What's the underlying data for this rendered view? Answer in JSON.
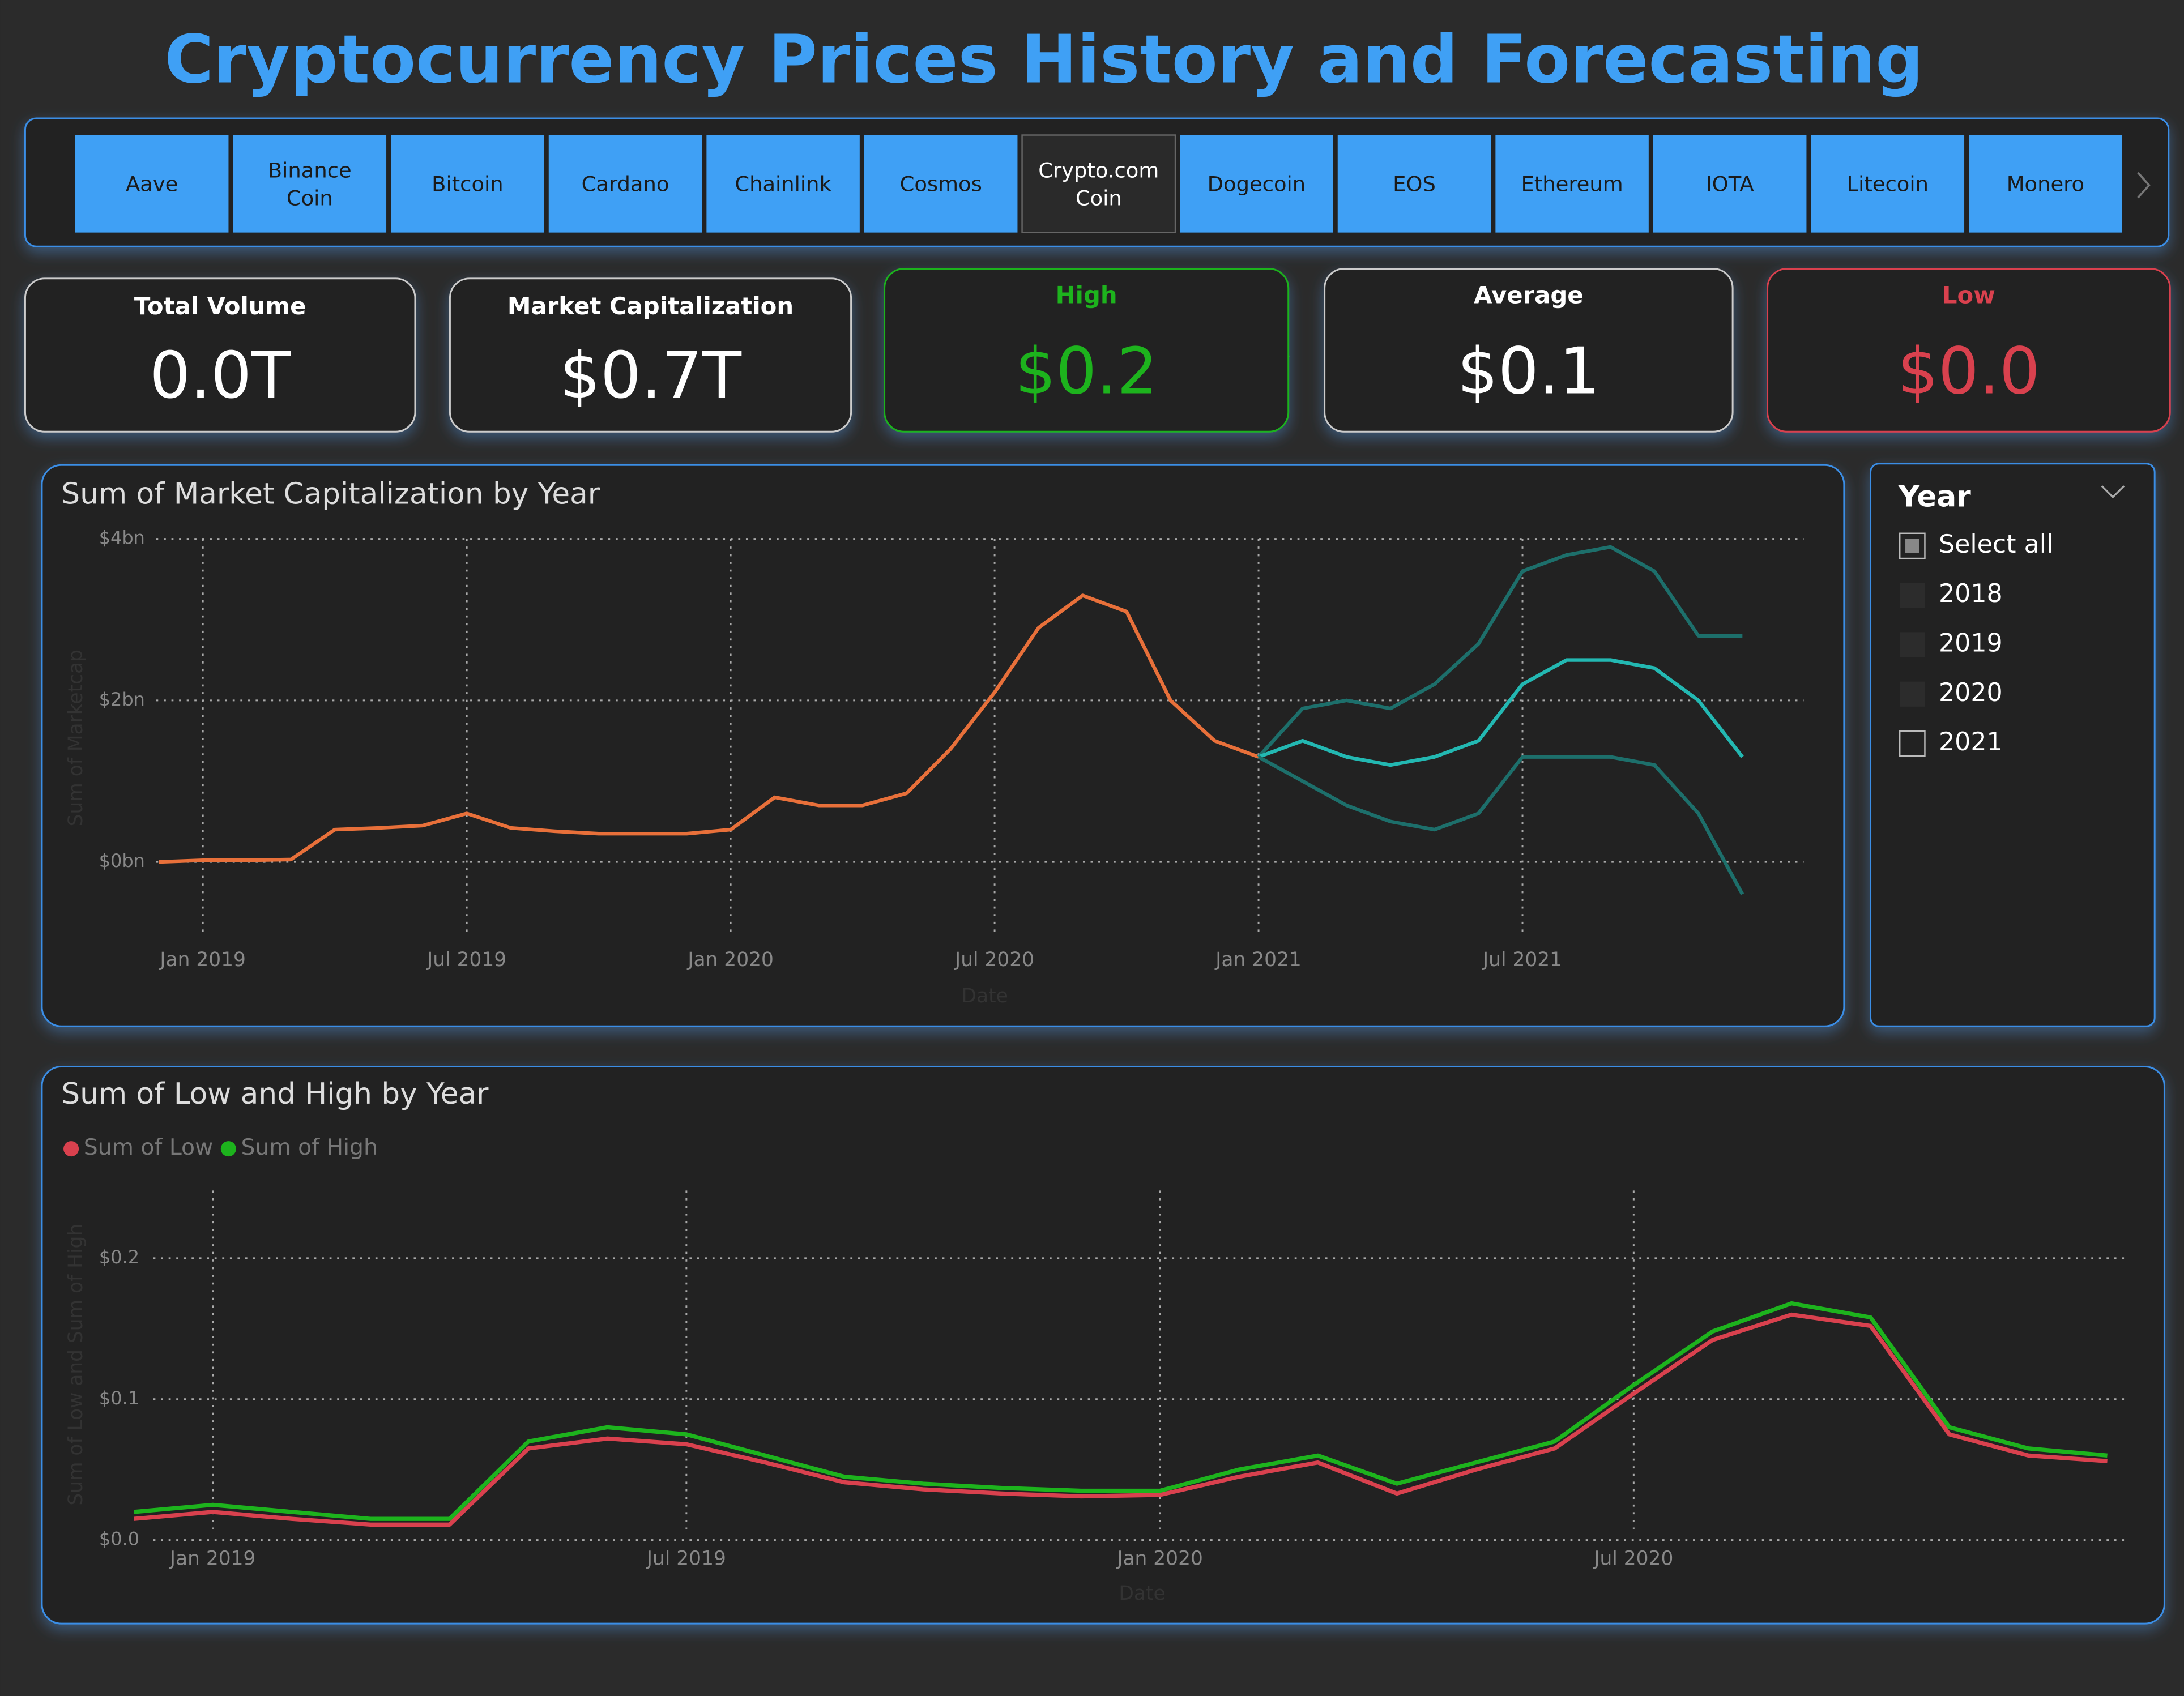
{
  "title": "Cryptocurrency Prices History and Forecasting",
  "tabs": {
    "items": [
      "Aave",
      "Binance Coin",
      "Bitcoin",
      "Cardano",
      "Chainlink",
      "Cosmos",
      "Crypto.com Coin",
      "Dogecoin",
      "EOS",
      "Ethereum",
      "IOTA",
      "Litecoin",
      "Monero"
    ],
    "selected": 6
  },
  "cards": [
    {
      "label": "Total Volume",
      "value": "0.0T",
      "color": "#ffffff"
    },
    {
      "label": "Market Capitalization",
      "value": "$0.7T",
      "color": "#ffffff"
    },
    {
      "label": "High",
      "value": "$0.2",
      "color": "#1db31d"
    },
    {
      "label": "Average",
      "value": "$0.1",
      "color": "#ffffff"
    },
    {
      "label": "Low",
      "value": "$0.0",
      "color": "#d9414e"
    }
  ],
  "slicer": {
    "title": "Year",
    "items": [
      "Select all",
      "2018",
      "2019",
      "2020",
      "2021"
    ]
  },
  "chart_data": [
    {
      "type": "line",
      "title": "Sum of Market Capitalization by Year",
      "x_label": "Date",
      "y_label": "Sum of Marketcap",
      "x": [
        "2018-12",
        "2019-01",
        "2019-02",
        "2019-03",
        "2019-04",
        "2019-05",
        "2019-06",
        "2019-07",
        "2019-08",
        "2019-09",
        "2019-10",
        "2019-11",
        "2019-12",
        "2020-01",
        "2020-02",
        "2020-03",
        "2020-04",
        "2020-05",
        "2020-06",
        "2020-07",
        "2020-08",
        "2020-09",
        "2020-10",
        "2020-11",
        "2020-12",
        "2021-01",
        "2021-02",
        "2021-03",
        "2021-04",
        "2021-05",
        "2021-06",
        "2021-07",
        "2021-08",
        "2021-09",
        "2021-10",
        "2021-11",
        "2021-12"
      ],
      "series": [
        {
          "color": "#e8703a",
          "values": [
            0.0,
            0.02,
            0.02,
            0.03,
            0.4,
            0.42,
            0.45,
            0.6,
            0.42,
            0.38,
            0.35,
            0.35,
            0.35,
            0.4,
            0.8,
            0.7,
            0.7,
            0.85,
            1.4,
            2.1,
            2.9,
            3.3,
            3.1,
            2.0,
            1.5,
            1.3,
            null,
            null,
            null,
            null,
            null,
            null,
            null,
            null,
            null,
            null,
            null
          ]
        },
        {
          "color": "#1d6f6b",
          "values": [
            null,
            null,
            null,
            null,
            null,
            null,
            null,
            null,
            null,
            null,
            null,
            null,
            null,
            null,
            null,
            null,
            null,
            null,
            null,
            null,
            null,
            null,
            null,
            null,
            null,
            1.3,
            1.9,
            2.0,
            1.9,
            2.2,
            2.7,
            3.6,
            3.8,
            3.9,
            3.6,
            2.8,
            2.8
          ]
        },
        {
          "color": "#23b8b2",
          "values": [
            null,
            null,
            null,
            null,
            null,
            null,
            null,
            null,
            null,
            null,
            null,
            null,
            null,
            null,
            null,
            null,
            null,
            null,
            null,
            null,
            null,
            null,
            null,
            null,
            null,
            1.3,
            1.5,
            1.3,
            1.2,
            1.3,
            1.5,
            2.2,
            2.5,
            2.5,
            2.4,
            2.0,
            1.3
          ]
        },
        {
          "color": "#1d6f6b",
          "values": [
            null,
            null,
            null,
            null,
            null,
            null,
            null,
            null,
            null,
            null,
            null,
            null,
            null,
            null,
            null,
            null,
            null,
            null,
            null,
            null,
            null,
            null,
            null,
            null,
            null,
            1.3,
            1.0,
            0.7,
            0.5,
            0.4,
            0.6,
            1.3,
            1.3,
            1.3,
            1.2,
            0.6,
            -0.4
          ]
        }
      ],
      "xlim": [
        "2018-12",
        "2021-12"
      ],
      "xticks": [
        {
          "value": "2019-01",
          "label": "Jan 2019"
        },
        {
          "value": "2019-07",
          "label": "Jul 2019"
        },
        {
          "value": "2020-01",
          "label": "Jan 2020"
        },
        {
          "value": "2020-07",
          "label": "Jul 2020"
        },
        {
          "value": "2021-01",
          "label": "Jan 2021"
        },
        {
          "value": "2021-07",
          "label": "Jul 2021"
        }
      ],
      "ylim": [
        -1.0,
        4.0
      ],
      "yticks": [
        {
          "value": 0,
          "label": "$0bn"
        },
        {
          "value": 2,
          "label": "$2bn"
        },
        {
          "value": 4,
          "label": "$4bn"
        }
      ],
      "grid": true
    },
    {
      "type": "line",
      "title": "Sum of Low and High by Year",
      "x_label": "Date",
      "y_label": "Sum of Low and Sum of High",
      "x": [
        "2018-12",
        "2019-01",
        "2019-02",
        "2019-03",
        "2019-04",
        "2019-05",
        "2019-06",
        "2019-07",
        "2019-08",
        "2019-09",
        "2019-10",
        "2019-11",
        "2019-12",
        "2020-01",
        "2020-02",
        "2020-03",
        "2020-04",
        "2020-05",
        "2020-06",
        "2020-07",
        "2020-08",
        "2020-09",
        "2020-10",
        "2020-11",
        "2020-12",
        "2021-01"
      ],
      "series": [
        {
          "name": "Sum of Low",
          "color": "#d9414e",
          "values": [
            0.015,
            0.02,
            0.015,
            0.011,
            0.011,
            0.065,
            0.072,
            0.068,
            0.055,
            0.041,
            0.036,
            0.033,
            0.031,
            0.032,
            0.045,
            0.055,
            0.033,
            0.05,
            0.065,
            0.104,
            0.142,
            0.16,
            0.152,
            0.075,
            0.06,
            0.056
          ]
        },
        {
          "name": "Sum of High",
          "color": "#1db31d",
          "values": [
            0.02,
            0.025,
            0.02,
            0.015,
            0.015,
            0.07,
            0.08,
            0.075,
            0.06,
            0.045,
            0.04,
            0.037,
            0.035,
            0.035,
            0.05,
            0.06,
            0.04,
            0.055,
            0.07,
            0.11,
            0.148,
            0.168,
            0.158,
            0.08,
            0.065,
            0.06
          ]
        }
      ],
      "xlim": [
        "2018-12",
        "2021-01"
      ],
      "xticks": [
        {
          "value": "2019-01",
          "label": "Jan 2019"
        },
        {
          "value": "2019-07",
          "label": "Jul 2019"
        },
        {
          "value": "2020-01",
          "label": "Jan 2020"
        },
        {
          "value": "2020-07",
          "label": "Jul 2020"
        }
      ],
      "ylim": [
        0,
        0.25
      ],
      "yticks": [
        {
          "value": 0,
          "label": "$0.0"
        },
        {
          "value": 0.1,
          "label": "$0.1"
        },
        {
          "value": 0.2,
          "label": "$0.2"
        }
      ],
      "grid": true,
      "legend": "top-left"
    }
  ]
}
